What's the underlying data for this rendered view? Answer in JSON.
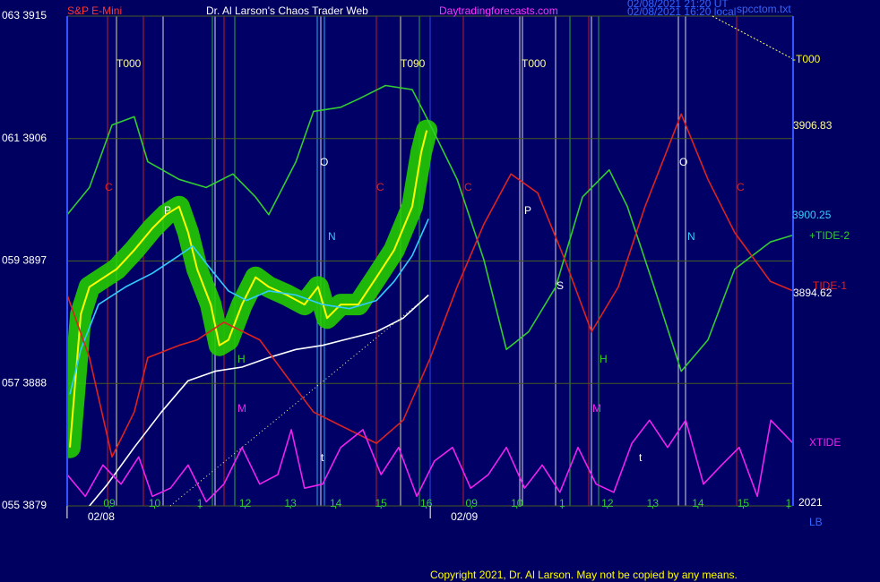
{
  "chart_data": {
    "type": "line",
    "symbol": "S&P E-Mini",
    "title": "Dr. Al Larson's Chaos Trader Web",
    "site": "Daytradingforecasts.com",
    "timestamps": [
      "02/08/2021 21:20 UT",
      "02/08/2021 16:20 local"
    ],
    "file": "spcctom.txt",
    "copyright": "Copyright 2021, Dr. Al Larson. May not be copied by any means.",
    "ylim": [
      3879,
      3915
    ],
    "yticks": [
      {
        "value": 3879,
        "label": "055  3879"
      },
      {
        "value": 3888,
        "label": "057  3888"
      },
      {
        "value": 3897,
        "label": "059  3897"
      },
      {
        "value": 3906,
        "label": "061  3906"
      },
      {
        "value": 3915,
        "label": "063  3915"
      }
    ],
    "xlim": [
      0.07,
      16.1
    ],
    "xticks": [
      {
        "value": 1,
        "label": "09"
      },
      {
        "value": 2,
        "label": "10"
      },
      {
        "value": 3,
        "label": "1"
      },
      {
        "value": 4,
        "label": "12"
      },
      {
        "value": 5,
        "label": "13"
      },
      {
        "value": 6,
        "label": "14"
      },
      {
        "value": 7,
        "label": "15"
      },
      {
        "value": 8,
        "label": "16"
      },
      {
        "value": 9,
        "label": "09"
      },
      {
        "value": 10,
        "label": "10"
      },
      {
        "value": 11,
        "label": "1"
      },
      {
        "value": 12,
        "label": "12"
      },
      {
        "value": 13,
        "label": "13"
      },
      {
        "value": 14,
        "label": "14"
      },
      {
        "value": 15,
        "label": "15"
      },
      {
        "value": 16,
        "label": "1"
      }
    ],
    "date_labels": [
      {
        "value": 0.82,
        "label": "02/08"
      },
      {
        "value": 8.84,
        "label": "02/09"
      }
    ],
    "grid": true,
    "annotations": [
      "T000",
      "T090",
      "T000",
      "C",
      "C",
      "C",
      "C",
      "P",
      "P",
      "O",
      "O",
      "N",
      "N",
      "S",
      "H",
      "H",
      "M",
      "M",
      "t",
      "t"
    ],
    "right_labels": [
      "-T000",
      "3906.83",
      "3900.25",
      "+TIDE-2",
      "TIDE-1",
      "3894.62",
      "XTIDE",
      "2021",
      "LB"
    ],
    "series": [
      {
        "color": "#ffff00",
        "glow": "#22cc00",
        "x": [
          0.13,
          0.37,
          0.56,
          1.16,
          1.55,
          1.95,
          2.25,
          2.54,
          2.74,
          2.94,
          3.24,
          3.43,
          3.63,
          3.93,
          4.23,
          4.52,
          4.92,
          5.31,
          5.61,
          5.81,
          6.11,
          6.5,
          6.9,
          7.29,
          7.69,
          7.89,
          8.01
        ],
        "values": [
          3883.3,
          3893.1,
          3895.1,
          3896.4,
          3897.8,
          3899.4,
          3900.4,
          3901.0,
          3899.1,
          3896.4,
          3893.8,
          3890.8,
          3891.2,
          3893.8,
          3895.8,
          3895.1,
          3894.5,
          3893.8,
          3895.1,
          3892.8,
          3893.8,
          3893.8,
          3895.8,
          3897.8,
          3901.0,
          3905.0,
          3906.6
        ]
      },
      {
        "color": "#33ccff",
        "x": [
          0.13,
          0.37,
          0.76,
          1.36,
          1.95,
          2.54,
          2.84,
          3.24,
          3.63,
          4.03,
          4.52,
          5.12,
          5.71,
          6.3,
          6.9,
          7.29,
          7.69,
          8.05
        ],
        "values": [
          3887.2,
          3890.5,
          3893.8,
          3895.1,
          3896.1,
          3897.4,
          3898.1,
          3896.4,
          3894.8,
          3894.1,
          3894.8,
          3894.5,
          3893.8,
          3893.5,
          3894.1,
          3895.5,
          3897.4,
          3900.1
        ]
      },
      {
        "color": "#ffffff",
        "x": [
          0.56,
          0.96,
          1.55,
          2.15,
          2.74,
          3.34,
          3.93,
          4.52,
          5.12,
          5.71,
          6.3,
          6.9,
          7.49,
          8.05
        ],
        "values": [
          3879.0,
          3880.6,
          3883.3,
          3885.9,
          3888.2,
          3888.9,
          3889.2,
          3889.9,
          3890.5,
          3890.8,
          3891.3,
          3891.8,
          3892.8,
          3894.5
        ]
      },
      {
        "color": "#33cc33",
        "x": [
          0.07,
          0.56,
          1.06,
          1.55,
          1.85,
          2.54,
          3.14,
          3.73,
          4.23,
          4.52,
          5.12,
          5.51,
          6.11,
          6.5,
          7.1,
          7.69,
          8.09,
          8.68,
          9.27,
          9.77,
          10.26,
          10.86,
          11.45,
          12.04,
          12.44,
          13.03,
          13.63,
          14.22,
          14.81,
          15.6,
          16.1
        ],
        "values": [
          3900.4,
          3902.4,
          3907.0,
          3907.6,
          3904.3,
          3903.0,
          3902.4,
          3903.4,
          3901.7,
          3900.4,
          3904.3,
          3908.0,
          3908.3,
          3908.9,
          3909.9,
          3909.6,
          3907.0,
          3903.0,
          3897.1,
          3890.5,
          3891.8,
          3895.1,
          3901.7,
          3903.7,
          3901.0,
          3895.1,
          3888.9,
          3891.2,
          3896.4,
          3898.4,
          3898.9
        ]
      },
      {
        "color": "#dd2222",
        "x": [
          0.07,
          0.56,
          1.06,
          1.55,
          1.85,
          2.54,
          2.94,
          3.53,
          4.32,
          4.92,
          5.51,
          6.11,
          6.9,
          7.49,
          8.09,
          8.68,
          9.27,
          9.87,
          10.46,
          11.06,
          11.65,
          12.24,
          12.83,
          13.63,
          14.22,
          14.81,
          15.6,
          16.1
        ],
        "values": [
          3894.5,
          3889.9,
          3882.6,
          3885.9,
          3889.9,
          3890.8,
          3891.2,
          3892.5,
          3891.2,
          3888.5,
          3885.9,
          3884.9,
          3883.6,
          3885.3,
          3889.9,
          3895.1,
          3899.7,
          3903.4,
          3902.0,
          3897.1,
          3891.8,
          3895.1,
          3901.0,
          3907.8,
          3903.0,
          3899.1,
          3895.5,
          3894.8
        ]
      },
      {
        "color": "#ee22ee",
        "x": [
          0.07,
          0.47,
          0.86,
          1.26,
          1.65,
          1.95,
          2.35,
          2.74,
          3.14,
          3.53,
          3.93,
          4.32,
          4.72,
          5.02,
          5.31,
          5.71,
          6.11,
          6.6,
          7.0,
          7.39,
          7.79,
          8.18,
          8.58,
          8.98,
          9.37,
          9.77,
          10.17,
          10.56,
          10.95,
          11.35,
          11.75,
          12.14,
          12.54,
          12.93,
          13.33,
          13.73,
          14.12,
          14.52,
          14.91,
          15.31,
          15.61,
          16.1
        ],
        "values": [
          3881.3,
          3879.7,
          3882.0,
          3880.6,
          3882.6,
          3879.7,
          3880.3,
          3882.0,
          3879.3,
          3880.6,
          3883.3,
          3880.6,
          3881.3,
          3884.6,
          3880.3,
          3880.6,
          3883.3,
          3884.6,
          3881.3,
          3883.3,
          3879.7,
          3882.3,
          3883.3,
          3880.3,
          3881.3,
          3883.3,
          3880.3,
          3882.0,
          3880.0,
          3883.3,
          3880.6,
          3880.0,
          3883.6,
          3885.3,
          3883.3,
          3885.3,
          3880.6,
          3882.0,
          3883.3,
          3879.7,
          3885.3,
          3883.6
        ]
      }
    ]
  }
}
